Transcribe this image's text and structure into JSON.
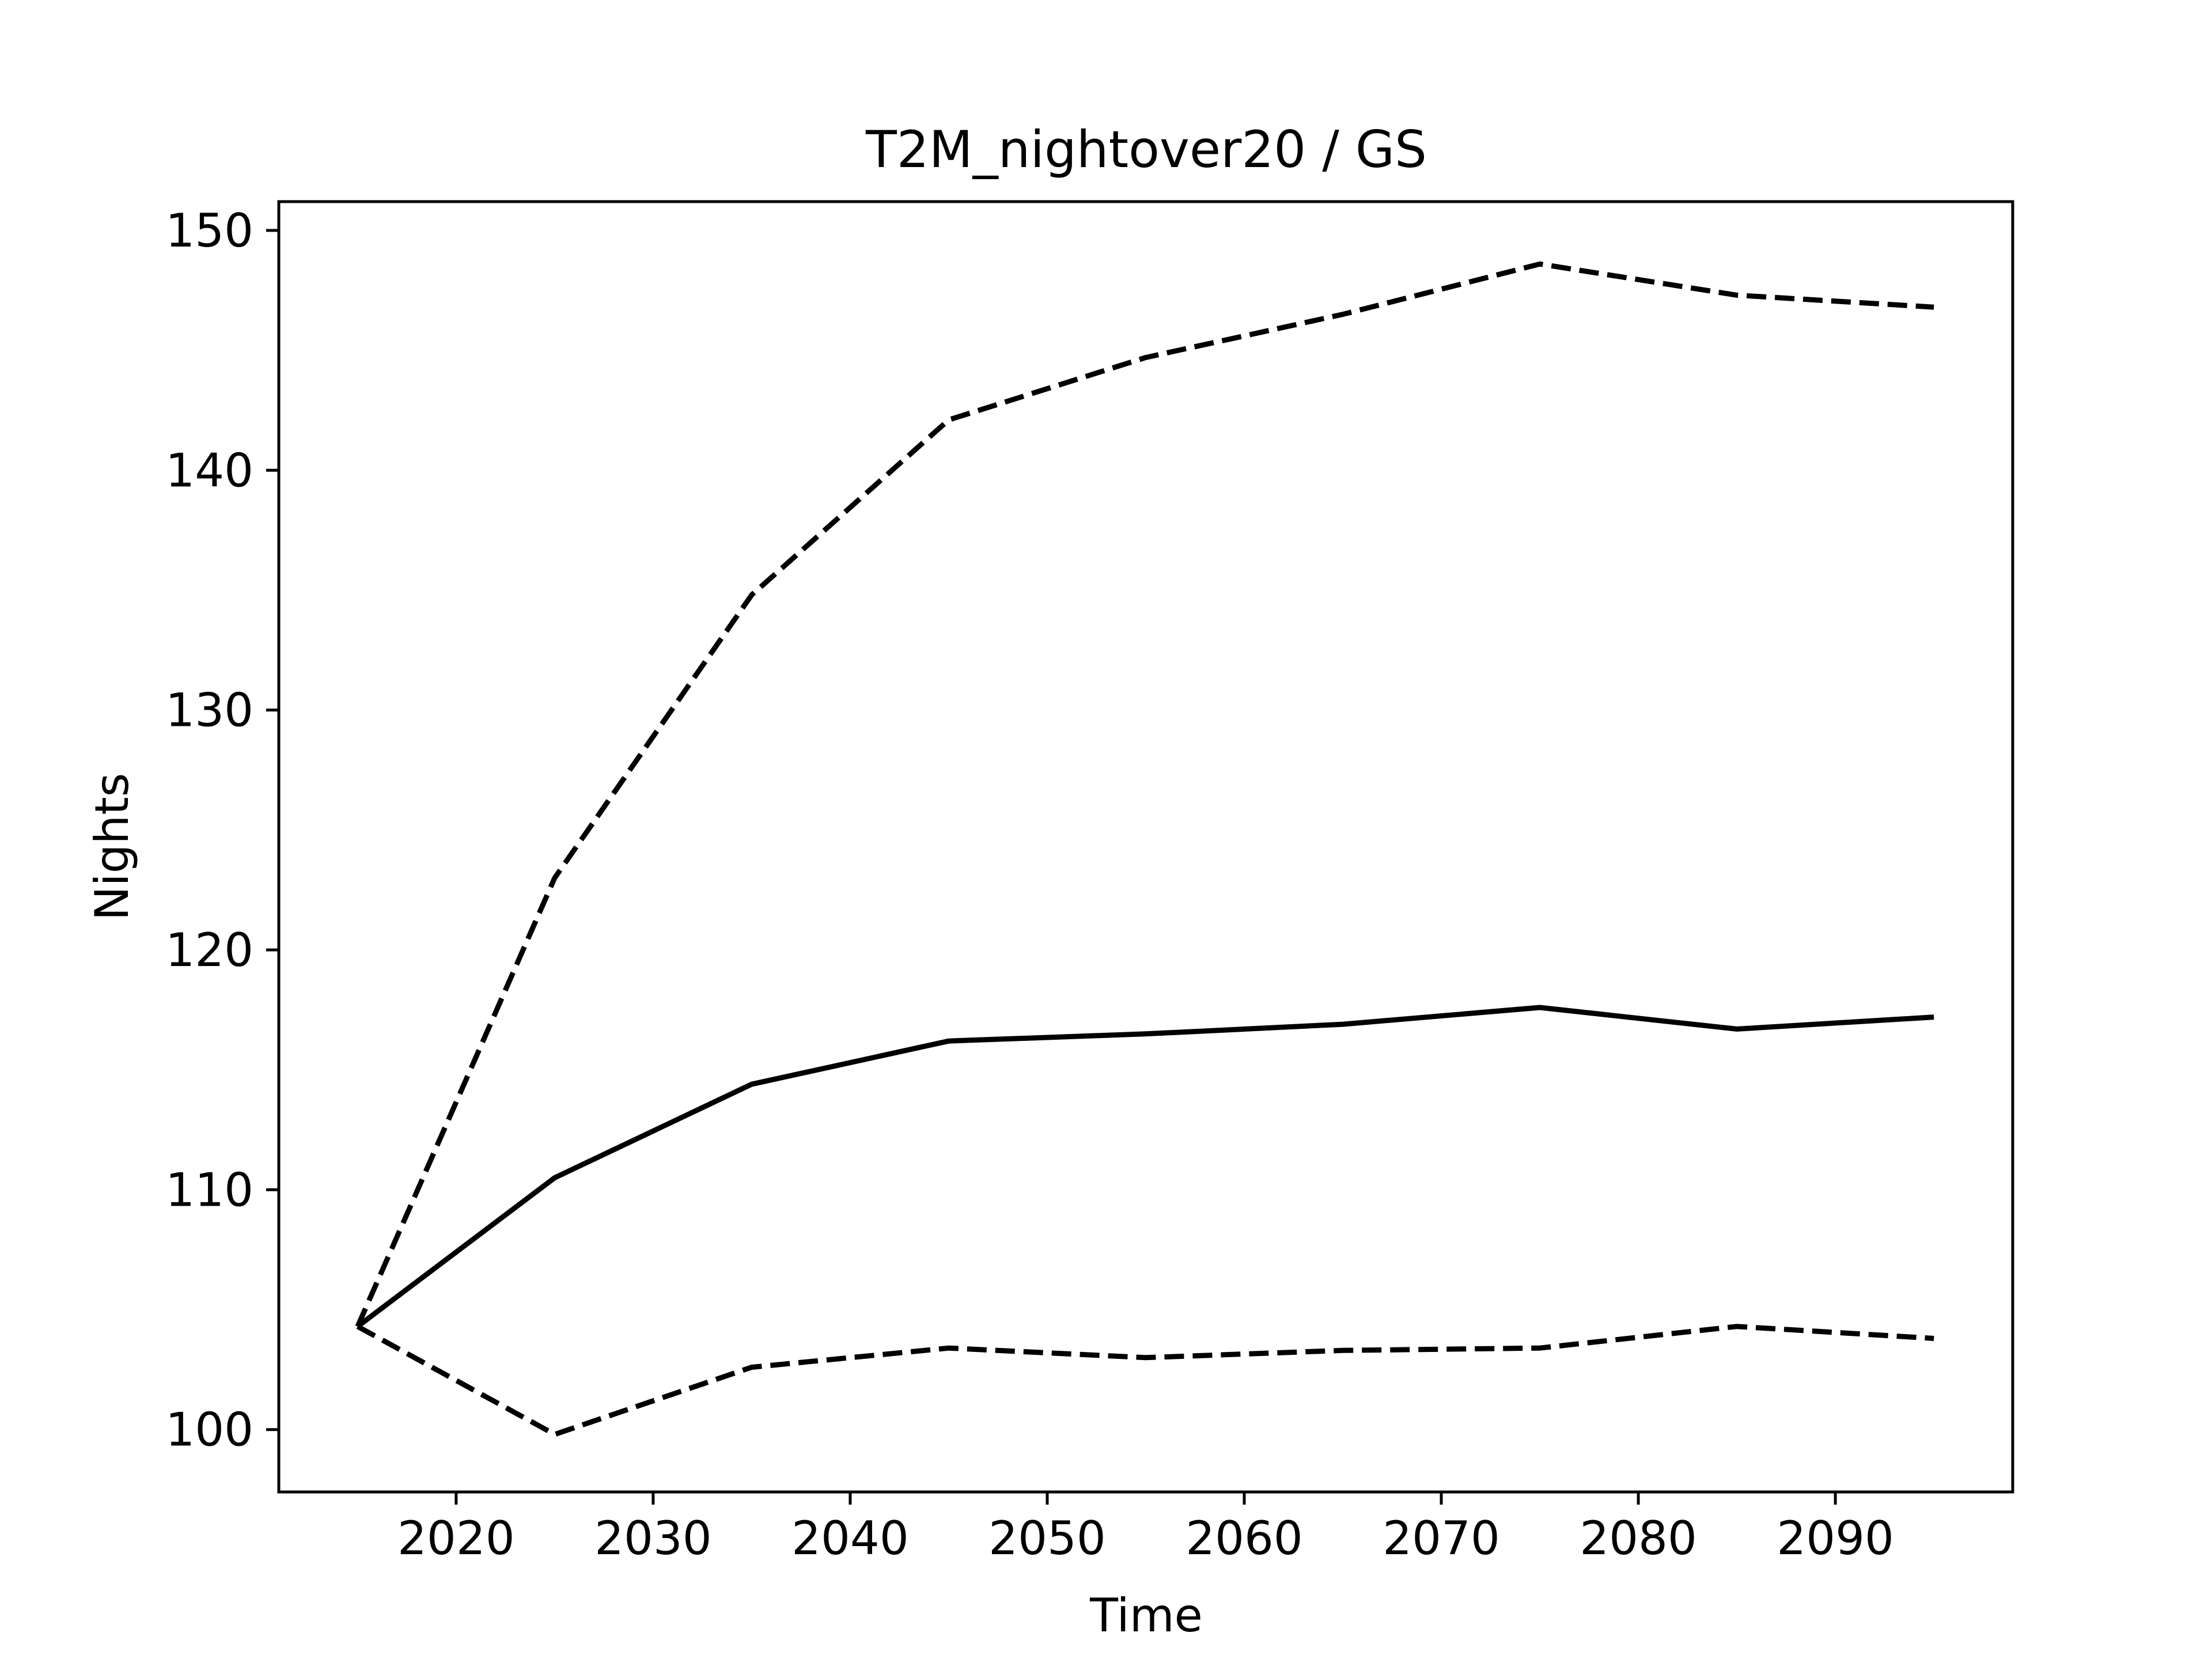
{
  "chart_data": {
    "type": "line",
    "title": "T2M_nightover20 / GS",
    "xlabel": "Time",
    "ylabel": "Nights",
    "xlim": [
      2011,
      2099
    ],
    "ylim": [
      97.4,
      151.2
    ],
    "xticks": [
      2020,
      2030,
      2040,
      2050,
      2060,
      2070,
      2080,
      2090
    ],
    "yticks": [
      100,
      110,
      120,
      130,
      140,
      150
    ],
    "grid": false,
    "legend": "none",
    "x": [
      2015,
      2025,
      2035,
      2045,
      2055,
      2065,
      2075,
      2085,
      2095
    ],
    "series": [
      {
        "style": "solid",
        "color": "#000000",
        "values": [
          104.3,
          110.5,
          114.4,
          116.2,
          116.5,
          116.9,
          117.6,
          116.7,
          117.2
        ]
      },
      {
        "style": "dashed",
        "color": "#000000",
        "values": [
          104.3,
          123.0,
          134.8,
          142.1,
          144.7,
          146.5,
          148.6,
          147.3,
          146.8
        ]
      },
      {
        "style": "dashed",
        "color": "#000000",
        "values": [
          104.3,
          99.8,
          102.6,
          103.4,
          103.0,
          103.3,
          103.4,
          104.3,
          103.8
        ]
      }
    ]
  }
}
